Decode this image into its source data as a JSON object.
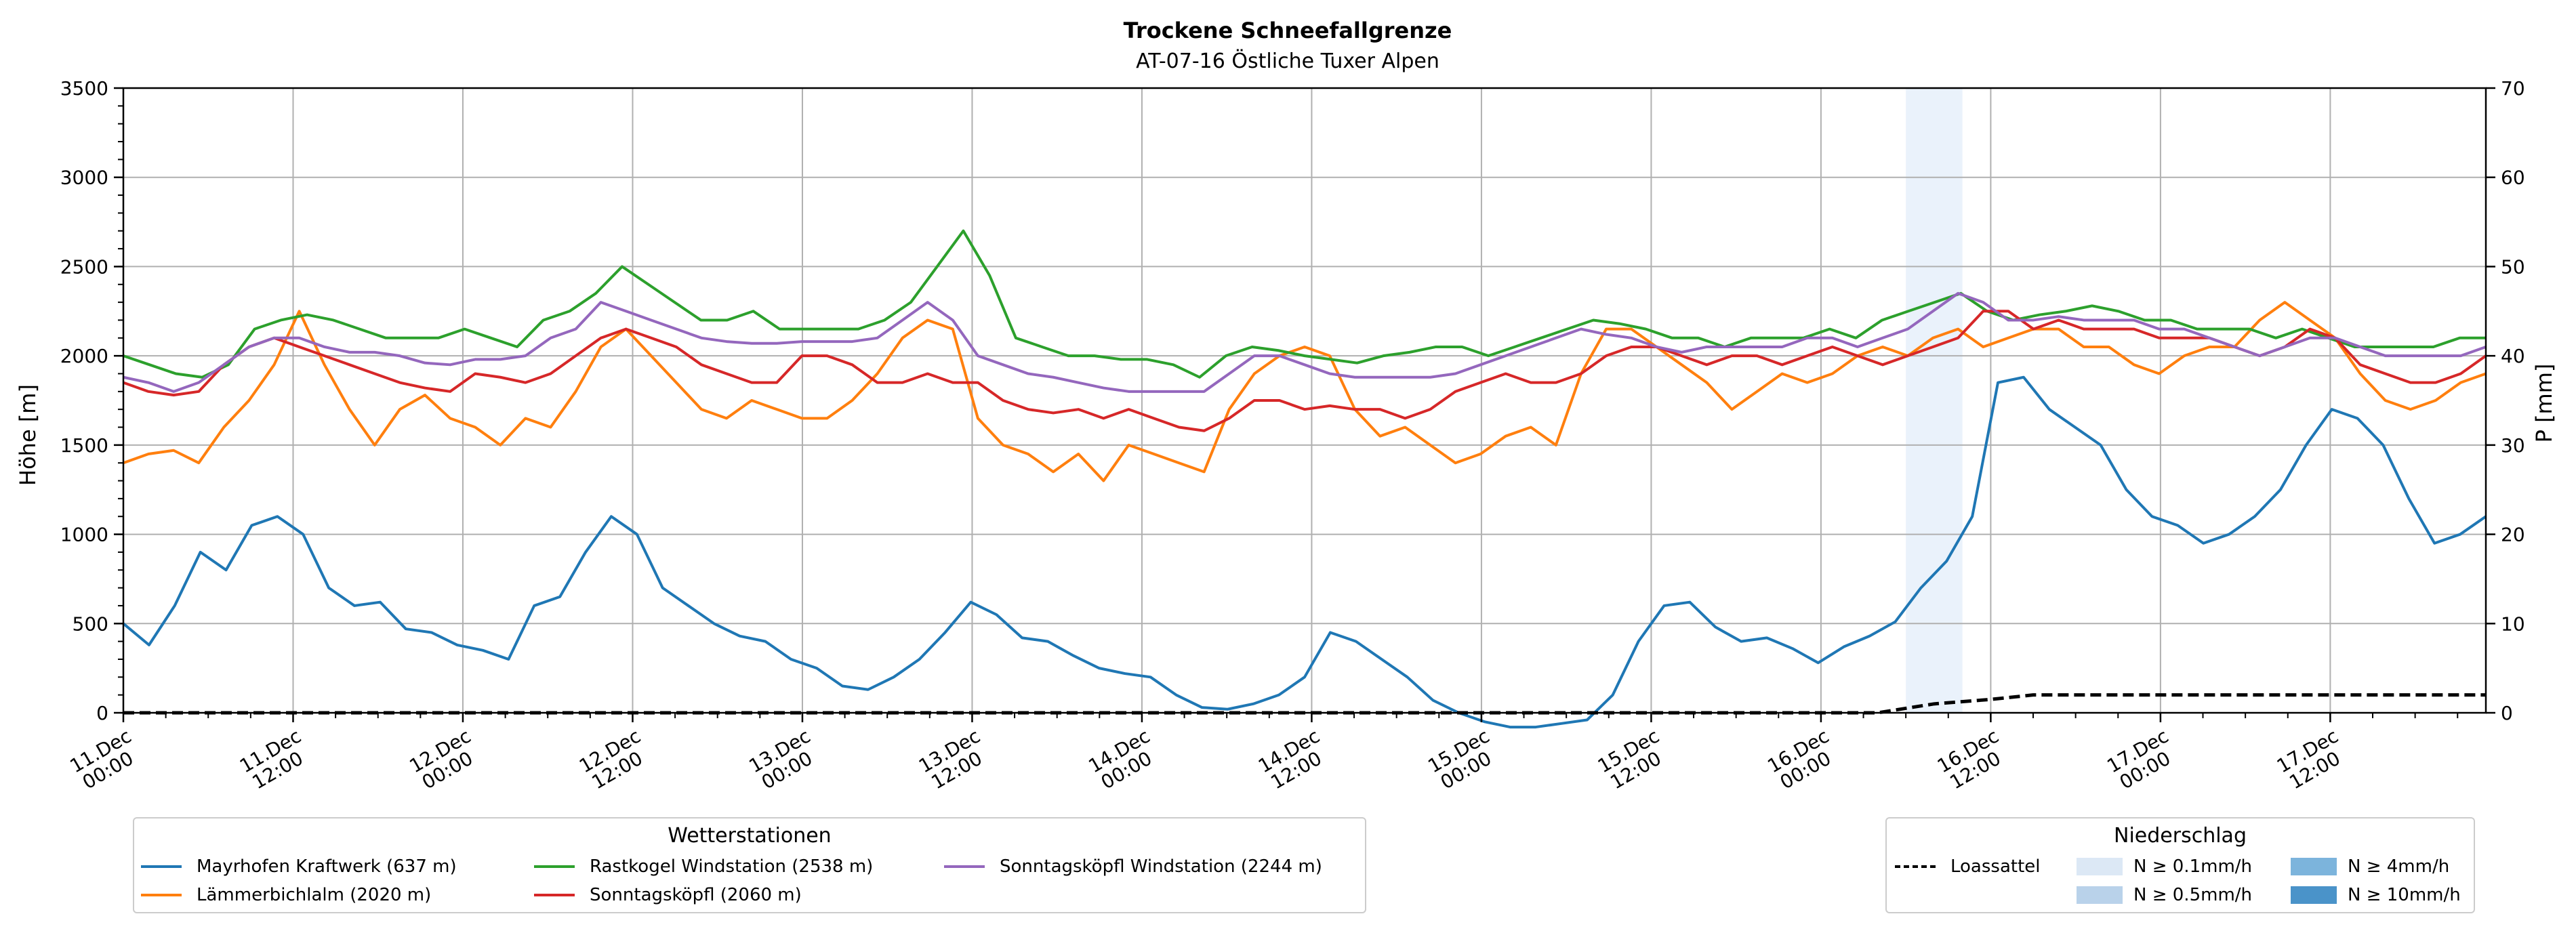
{
  "chart_data": {
    "type": "line",
    "title": "Trockene Schneefallgrenze",
    "subtitle": "AT-07-16 Östliche Tuxer Alpen",
    "ylabel": "Höhe [m]",
    "y2label": "P [mm]",
    "ylim": [
      0,
      3500
    ],
    "y2lim": [
      0,
      70
    ],
    "yticks": [
      0,
      500,
      1000,
      1500,
      2000,
      2500,
      3000,
      3500
    ],
    "y2ticks": [
      0,
      10,
      20,
      30,
      40,
      50,
      60,
      70
    ],
    "xlim": [
      "2025-12-11T00:00",
      "2025-12-17T23:00"
    ],
    "xticks": [
      {
        "date": "11.Dec",
        "time": "00:00"
      },
      {
        "date": "11.Dec",
        "time": "12:00"
      },
      {
        "date": "12.Dec",
        "time": "00:00"
      },
      {
        "date": "12.Dec",
        "time": "12:00"
      },
      {
        "date": "13.Dec",
        "time": "00:00"
      },
      {
        "date": "13.Dec",
        "time": "12:00"
      },
      {
        "date": "14.Dec",
        "time": "00:00"
      },
      {
        "date": "14.Dec",
        "time": "12:00"
      },
      {
        "date": "15.Dec",
        "time": "00:00"
      },
      {
        "date": "15.Dec",
        "time": "12:00"
      },
      {
        "date": "16.Dec",
        "time": "00:00"
      },
      {
        "date": "16.Dec",
        "time": "12:00"
      },
      {
        "date": "17.Dec",
        "time": "00:00"
      },
      {
        "date": "17.Dec",
        "time": "12:00"
      }
    ],
    "grid": true,
    "x_hours_step": 6,
    "series": [
      {
        "name": "Mayrhofen Kraftwerk (637 m)",
        "color": "#1f77b4",
        "values": [
          500,
          380,
          600,
          900,
          800,
          1050,
          1100,
          1000,
          700,
          600,
          620,
          470,
          450,
          380,
          350,
          300,
          600,
          650,
          900,
          1100,
          1000,
          700,
          600,
          500,
          430,
          400,
          300,
          250,
          150,
          130,
          200,
          300,
          450,
          620,
          550,
          420,
          400,
          320,
          250,
          220,
          200,
          100,
          30,
          20,
          50,
          100,
          200,
          450,
          400,
          300,
          200,
          70,
          0,
          -50,
          -80,
          -80,
          -60,
          -40,
          100,
          400,
          600,
          620,
          480,
          400,
          420,
          360,
          280,
          370,
          430,
          510,
          700,
          850,
          1100,
          1850,
          1880,
          1700,
          1600,
          1500,
          1250,
          1100,
          1050,
          950,
          1000,
          1100,
          1250,
          1500,
          1700,
          1650,
          1500,
          1200,
          950,
          1000,
          1100
        ]
      },
      {
        "name": "Lämmerbichlalm (2020 m)",
        "color": "#ff7f0e",
        "values": [
          1400,
          1450,
          1470,
          1400,
          1600,
          1750,
          1950,
          2250,
          1950,
          1700,
          1500,
          1700,
          1780,
          1650,
          1600,
          1500,
          1650,
          1600,
          1800,
          2050,
          2150,
          2000,
          1850,
          1700,
          1650,
          1750,
          1700,
          1650,
          1650,
          1750,
          1900,
          2100,
          2200,
          2150,
          1650,
          1500,
          1450,
          1350,
          1450,
          1300,
          1500,
          1450,
          1400,
          1350,
          1700,
          1900,
          2000,
          2050,
          2000,
          1700,
          1550,
          1600,
          1500,
          1400,
          1450,
          1550,
          1600,
          1500,
          1900,
          2150,
          2150,
          2050,
          1950,
          1850,
          1700,
          1800,
          1900,
          1850,
          1900,
          2000,
          2050,
          2000,
          2100,
          2150,
          2050,
          2100,
          2150,
          2150,
          2050,
          2050,
          1950,
          1900,
          2000,
          2050,
          2050,
          2200,
          2300,
          2200,
          2100,
          1900,
          1750,
          1700,
          1750,
          1850,
          1900
        ]
      },
      {
        "name": "Rastkogel Windstation (2538 m)",
        "color": "#2ca02c",
        "values": [
          2000,
          1950,
          1900,
          1880,
          1950,
          2150,
          2200,
          2230,
          2200,
          2150,
          2100,
          2100,
          2100,
          2150,
          2100,
          2050,
          2200,
          2250,
          2350,
          2500,
          2400,
          2300,
          2200,
          2200,
          2250,
          2150,
          2150,
          2150,
          2150,
          2200,
          2300,
          2500,
          2700,
          2450,
          2100,
          2050,
          2000,
          2000,
          1980,
          1980,
          1950,
          1880,
          2000,
          2050,
          2030,
          2000,
          1980,
          1960,
          2000,
          2020,
          2050,
          2050,
          2000,
          2050,
          2100,
          2150,
          2200,
          2180,
          2150,
          2100,
          2100,
          2050,
          2100,
          2100,
          2100,
          2150,
          2100,
          2200,
          2250,
          2300,
          2350,
          2250,
          2200,
          2230,
          2250,
          2280,
          2250,
          2200,
          2200,
          2150,
          2150,
          2150,
          2100,
          2150,
          2100,
          2050,
          2050,
          2050,
          2050,
          2100,
          2100
        ]
      },
      {
        "name": "Sonntagsköpfl (2060 m)",
        "color": "#d62728",
        "values": [
          1850,
          1800,
          1780,
          1800,
          1950,
          2050,
          2100,
          2050,
          2000,
          1950,
          1900,
          1850,
          1820,
          1800,
          1900,
          1880,
          1850,
          1900,
          2000,
          2100,
          2150,
          2100,
          2050,
          1950,
          1900,
          1850,
          1850,
          2000,
          2000,
          1950,
          1850,
          1850,
          1900,
          1850,
          1850,
          1750,
          1700,
          1680,
          1700,
          1650,
          1700,
          1650,
          1600,
          1580,
          1650,
          1750,
          1750,
          1700,
          1720,
          1700,
          1700,
          1650,
          1700,
          1800,
          1850,
          1900,
          1850,
          1850,
          1900,
          2000,
          2050,
          2050,
          2000,
          1950,
          2000,
          2000,
          1950,
          2000,
          2050,
          2000,
          1950,
          2000,
          2050,
          2100,
          2250,
          2250,
          2150,
          2200,
          2150,
          2150,
          2150,
          2100,
          2100,
          2100,
          2050,
          2000,
          2050,
          2150,
          2100,
          1950,
          1900,
          1850,
          1850,
          1900,
          2000
        ]
      },
      {
        "name": "Sonntagsköpfl Windstation (2244 m)",
        "color": "#9467bd",
        "values": [
          1880,
          1850,
          1800,
          1850,
          1950,
          2050,
          2100,
          2100,
          2050,
          2020,
          2020,
          2000,
          1960,
          1950,
          1980,
          1980,
          2000,
          2100,
          2150,
          2300,
          2250,
          2200,
          2150,
          2100,
          2080,
          2070,
          2070,
          2080,
          2080,
          2080,
          2100,
          2200,
          2300,
          2200,
          2000,
          1950,
          1900,
          1880,
          1850,
          1820,
          1800,
          1800,
          1800,
          1800,
          1900,
          2000,
          2000,
          1950,
          1900,
          1880,
          1880,
          1880,
          1880,
          1900,
          1950,
          2000,
          2050,
          2100,
          2150,
          2120,
          2100,
          2050,
          2020,
          2050,
          2050,
          2050,
          2050,
          2100,
          2100,
          2050,
          2100,
          2150,
          2250,
          2350,
          2300,
          2200,
          2200,
          2220,
          2200,
          2200,
          2200,
          2150,
          2150,
          2100,
          2050,
          2000,
          2050,
          2100,
          2100,
          2050,
          2000,
          2000,
          2000,
          2000,
          2050
        ]
      }
    ],
    "precip_series": {
      "name": "Loassattel",
      "color": "#000000",
      "dash": true,
      "points": [
        {
          "hour": 0,
          "mm": 0
        },
        {
          "hour": 124,
          "mm": 0
        },
        {
          "hour": 128,
          "mm": 1
        },
        {
          "hour": 132,
          "mm": 1.5
        },
        {
          "hour": 135,
          "mm": 2
        },
        {
          "hour": 141,
          "mm": 2
        },
        {
          "hour": 167,
          "mm": 2
        }
      ]
    },
    "precip_band": {
      "start_hour": 126,
      "end_hour": 130,
      "intensity": "N ≥ 0.1mm/h"
    },
    "legend_stations": {
      "title": "Wetterstationen",
      "items": [
        "Mayrhofen Kraftwerk (637 m)",
        "Lämmerbichlalm (2020 m)",
        "Rastkogel Windstation (2538 m)",
        "Sonntagsköpfl (2060 m)",
        "Sonntagsköpfl Windstation (2244 m)"
      ]
    },
    "legend_precip": {
      "title": "Niederschlag",
      "line_label": "Loassattel",
      "patches": [
        {
          "label": "N ≥ 0.1mm/h",
          "color": "#dce8f5"
        },
        {
          "label": "N ≥ 0.5mm/h",
          "color": "#b9d2ea"
        },
        {
          "label": "N ≥ 4mm/h",
          "color": "#7cb4dc"
        },
        {
          "label": "N ≥ 10mm/h",
          "color": "#4a93c9"
        }
      ]
    }
  }
}
